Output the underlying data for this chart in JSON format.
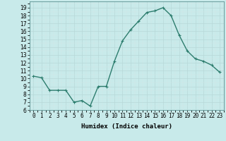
{
  "x": [
    0,
    1,
    2,
    3,
    4,
    5,
    6,
    7,
    8,
    9,
    10,
    11,
    12,
    13,
    14,
    15,
    16,
    17,
    18,
    19,
    20,
    21,
    22,
    23
  ],
  "y": [
    10.3,
    10.1,
    8.5,
    8.5,
    8.5,
    7.0,
    7.2,
    6.5,
    9.0,
    9.0,
    12.2,
    14.8,
    16.2,
    17.3,
    18.4,
    18.6,
    19.0,
    18.0,
    15.5,
    13.5,
    12.5,
    12.2,
    11.7,
    10.8
  ],
  "line_color": "#2d7d6e",
  "bg_color": "#c8eaea",
  "grid_color": "#b0d8d8",
  "xlabel": "Humidex (Indice chaleur)",
  "xlim": [
    -0.5,
    23.5
  ],
  "ylim": [
    6,
    19.8
  ],
  "yticks": [
    6,
    7,
    8,
    9,
    10,
    11,
    12,
    13,
    14,
    15,
    16,
    17,
    18,
    19
  ],
  "xtick_labels": [
    "0",
    "1",
    "2",
    "3",
    "4",
    "5",
    "6",
    "7",
    "8",
    "9",
    "10",
    "11",
    "12",
    "13",
    "14",
    "15",
    "16",
    "17",
    "18",
    "19",
    "20",
    "21",
    "22",
    "23"
  ],
  "marker": "+",
  "marker_size": 3,
  "linewidth": 1.0,
  "tick_fontsize": 5.5,
  "xlabel_fontsize": 6.5
}
